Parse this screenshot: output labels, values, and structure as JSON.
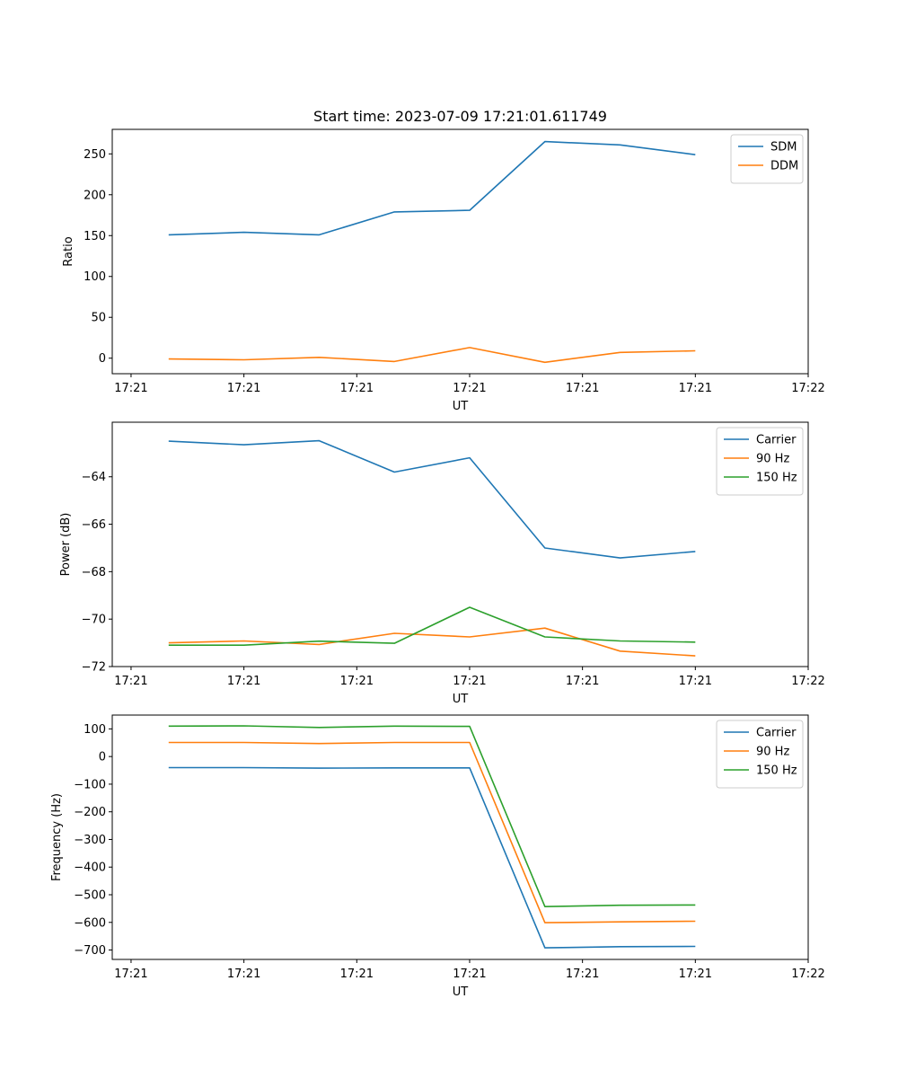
{
  "figure": {
    "title": "Start time: 2023-07-09 17:21:01.611749"
  },
  "chart_data": [
    {
      "type": "line",
      "title": "Start time: 2023-07-09 17:21:01.611749",
      "xlabel": "UT",
      "ylabel": "Ratio",
      "x_tick_labels": [
        "17:21",
        "17:21",
        "17:21",
        "17:21",
        "17:21",
        "17:21",
        "17:22"
      ],
      "x_index_range": [
        -0.75,
        8.5
      ],
      "ylim": [
        -19,
        280
      ],
      "y_ticks": [
        0,
        50,
        100,
        150,
        200,
        250
      ],
      "y_tick_labels": [
        "0",
        "50",
        "100",
        "150",
        "200",
        "250"
      ],
      "legend_position": "top-right",
      "series": [
        {
          "name": "SDM",
          "color": "#1f77b4",
          "x": [
            0,
            1,
            2,
            3,
            4,
            5,
            6,
            7
          ],
          "values": [
            151,
            154,
            151,
            179,
            181,
            265,
            261,
            249
          ]
        },
        {
          "name": "DDM",
          "color": "#ff7f0e",
          "x": [
            0,
            1,
            2,
            3,
            4,
            5,
            6,
            7
          ],
          "values": [
            -1,
            -2,
            1,
            -4,
            13,
            -5,
            7,
            9
          ]
        }
      ]
    },
    {
      "type": "line",
      "title": "",
      "xlabel": "UT",
      "ylabel": "Power (dB)",
      "x_tick_labels": [
        "17:21",
        "17:21",
        "17:21",
        "17:21",
        "17:21",
        "17:21",
        "17:22"
      ],
      "x_index_range": [
        -0.75,
        8.5
      ],
      "ylim": [
        -72,
        -61.7
      ],
      "y_ticks": [
        -64,
        -66,
        -68,
        -70,
        -72
      ],
      "y_tick_labels": [
        "−64",
        "−66",
        "−68",
        "−70",
        "−72"
      ],
      "legend_position": "top-right",
      "series": [
        {
          "name": "Carrier",
          "color": "#1f77b4",
          "x": [
            0,
            1,
            2,
            3,
            4,
            5,
            6,
            7
          ],
          "values": [
            -62.5,
            -62.65,
            -62.48,
            -63.8,
            -63.2,
            -67.0,
            -67.42,
            -67.15
          ]
        },
        {
          "name": "90 Hz",
          "color": "#ff7f0e",
          "x": [
            0,
            1,
            2,
            3,
            4,
            5,
            6,
            7
          ],
          "values": [
            -71.0,
            -70.92,
            -71.07,
            -70.6,
            -70.75,
            -70.38,
            -71.35,
            -71.55
          ]
        },
        {
          "name": "150 Hz",
          "color": "#2ca02c",
          "x": [
            0,
            1,
            2,
            3,
            4,
            5,
            6,
            7
          ],
          "values": [
            -71.1,
            -71.1,
            -70.93,
            -71.02,
            -69.5,
            -70.75,
            -70.92,
            -70.97
          ]
        }
      ]
    },
    {
      "type": "line",
      "title": "",
      "xlabel": "UT",
      "ylabel": "Frequency (Hz)",
      "x_tick_labels": [
        "17:21",
        "17:21",
        "17:21",
        "17:21",
        "17:21",
        "17:21",
        "17:22"
      ],
      "x_index_range": [
        -0.75,
        8.5
      ],
      "ylim": [
        -734,
        150
      ],
      "y_ticks": [
        100,
        0,
        -100,
        -200,
        -300,
        -400,
        -500,
        -600,
        -700
      ],
      "y_tick_labels": [
        "100",
        "0",
        "−100",
        "−200",
        "−300",
        "−400",
        "−500",
        "−600",
        "−700"
      ],
      "legend_position": "top-right",
      "series": [
        {
          "name": "Carrier",
          "color": "#1f77b4",
          "x": [
            0,
            1,
            2,
            3,
            4,
            5,
            6,
            7
          ],
          "values": [
            -40,
            -40,
            -42,
            -41,
            -41,
            -692,
            -688,
            -687
          ]
        },
        {
          "name": "90 Hz",
          "color": "#ff7f0e",
          "x": [
            0,
            1,
            2,
            3,
            4,
            5,
            6,
            7
          ],
          "values": [
            51,
            51,
            47,
            51,
            51,
            -601,
            -598,
            -596
          ]
        },
        {
          "name": "150 Hz",
          "color": "#2ca02c",
          "x": [
            0,
            1,
            2,
            3,
            4,
            5,
            6,
            7
          ],
          "values": [
            110,
            111,
            105,
            110,
            109,
            -543,
            -538,
            -537
          ]
        }
      ]
    }
  ]
}
